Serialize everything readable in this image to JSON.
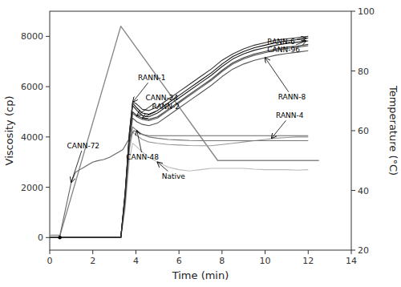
{
  "chart_data": {
    "type": "line",
    "xlabel": "Time (min)",
    "ylabel": "Viscosity (cp)",
    "y2label": "Temperature (°C)",
    "xlim": [
      0,
      14
    ],
    "ylim": [
      -500,
      9000
    ],
    "y2lim": [
      20,
      100
    ],
    "xticks": [
      0,
      2,
      4,
      6,
      8,
      10,
      12,
      14
    ],
    "yticks": [
      0,
      2000,
      4000,
      6000,
      8000
    ],
    "y2ticks": [
      20,
      40,
      60,
      80,
      100
    ],
    "grid": false,
    "series": [
      {
        "color": "#888888",
        "axis": "y2",
        "x": [
          0,
          0.48,
          3.3,
          3.3,
          7.8,
          7.8,
          12.5
        ],
        "values": [
          25,
          25,
          95,
          95,
          50,
          50,
          50
        ]
      },
      {
        "name": "Native",
        "color": "#bbbbbb",
        "x": [
          0,
          0.47,
          0.47,
          3.3,
          3.5,
          3.7,
          3.85,
          4.05,
          4.3,
          4.6,
          5.0,
          5.5,
          6.0,
          6.5,
          7.0,
          7.5,
          8.0,
          8.5,
          9.0,
          9.5,
          10.0,
          10.5,
          11.0,
          11.5,
          12.0
        ],
        "values": [
          0,
          0,
          0,
          0,
          1100,
          3100,
          3750,
          3600,
          3400,
          3200,
          3000,
          2800,
          2700,
          2650,
          2700,
          2750,
          2750,
          2750,
          2750,
          2720,
          2700,
          2700,
          2700,
          2680,
          2700
        ]
      },
      {
        "name": "RANN-4",
        "color": "#999999",
        "x": [
          0,
          0.47,
          0.47,
          3.3,
          3.5,
          3.7,
          3.85,
          4.05,
          4.3,
          4.6,
          5.0,
          5.5,
          6.0,
          6.5,
          7.0,
          7.5,
          8.0,
          8.5,
          9.0,
          9.5,
          10.0,
          10.5,
          11.0,
          11.5,
          12.0
        ],
        "values": [
          0,
          0,
          0,
          0,
          1300,
          3500,
          4200,
          4050,
          3900,
          3800,
          3750,
          3700,
          3680,
          3660,
          3650,
          3650,
          3700,
          3750,
          3800,
          3850,
          3900,
          3950,
          3980,
          4000,
          4000
        ]
      },
      {
        "name": "CANN-48",
        "color": "#777777",
        "x": [
          0,
          0.47,
          0.47,
          3.3,
          3.5,
          3.7,
          3.85,
          4.05,
          4.3,
          4.6,
          5.0,
          5.5,
          6.0,
          6.5,
          7.0,
          7.5,
          8.0,
          8.5,
          9.0,
          9.5,
          10.0,
          10.5,
          11.0,
          11.5,
          12.0
        ],
        "values": [
          0,
          0,
          0,
          0,
          1400,
          3650,
          4400,
          4250,
          4100,
          4000,
          3950,
          3900,
          3880,
          3860,
          3850,
          3850,
          3850,
          3850,
          3850,
          3850,
          3850,
          3850,
          3850,
          3850,
          3850
        ]
      },
      {
        "name": "RANN-8",
        "color": "#555555",
        "x": [
          0,
          0.47,
          0.47,
          3.3,
          3.5,
          3.7,
          3.85,
          4.05,
          4.3,
          4.6,
          5.0,
          5.5,
          6.0,
          6.5,
          7.0,
          7.5,
          8.0,
          8.5,
          9.0,
          9.5,
          10.0,
          10.5,
          11.0,
          11.5,
          12.0
        ],
        "values": [
          0,
          0,
          0,
          0,
          1500,
          3800,
          4750,
          4600,
          4500,
          4450,
          4550,
          4850,
          5150,
          5450,
          5750,
          6050,
          6400,
          6700,
          6900,
          7050,
          7150,
          7250,
          7320,
          7370,
          7430
        ]
      },
      {
        "name": "CANN-72",
        "color": "#666666",
        "x": [
          0,
          0.47,
          0.5,
          1.0,
          1.2,
          1.4,
          1.6,
          1.8,
          2.0,
          2.2,
          2.5,
          2.8,
          3.0,
          3.2,
          3.4,
          3.6,
          3.8,
          3.9,
          4.05,
          4.3,
          4.6,
          5.0,
          5.5,
          6.0,
          6.5,
          7.0,
          7.5,
          8.0,
          8.5,
          9.0,
          9.5,
          10.0,
          10.5,
          11.0,
          11.5,
          12.0
        ],
        "values": [
          0,
          0,
          200,
          2200,
          2600,
          2700,
          2800,
          2900,
          3000,
          3050,
          3100,
          3200,
          3300,
          3400,
          3500,
          3800,
          4100,
          4250,
          4200,
          4100,
          4050,
          4050,
          4050,
          4050,
          4050,
          4050,
          4050,
          4050,
          4050,
          4050,
          4050,
          4050,
          4050,
          4050,
          4050,
          4050
        ]
      },
      {
        "name": "RANN-2",
        "color": "#555555",
        "x": [
          0,
          0.47,
          0.47,
          3.3,
          3.5,
          3.7,
          3.85,
          4.05,
          4.3,
          4.6,
          5.0,
          5.5,
          6.0,
          6.5,
          7.0,
          7.5,
          8.0,
          8.5,
          9.0,
          9.5,
          10.0,
          10.5,
          11.0,
          11.5,
          12.0
        ],
        "values": [
          0,
          0,
          0,
          0,
          1600,
          3950,
          4950,
          4800,
          4700,
          4650,
          4750,
          5050,
          5350,
          5650,
          5950,
          6250,
          6600,
          6900,
          7100,
          7250,
          7350,
          7450,
          7520,
          7570,
          7630
        ]
      },
      {
        "name": "CANN-24",
        "color": "#444444",
        "x": [
          0,
          0.47,
          0.47,
          3.3,
          3.5,
          3.7,
          3.85,
          4.05,
          4.3,
          4.6,
          5.0,
          5.5,
          6.0,
          6.5,
          7.0,
          7.5,
          8.0,
          8.5,
          9.0,
          9.5,
          10.0,
          10.5,
          11.0,
          11.5,
          12.0
        ],
        "values": [
          0,
          0,
          0,
          0,
          1650,
          4000,
          5000,
          4850,
          4750,
          4700,
          4800,
          5100,
          5400,
          5700,
          6000,
          6300,
          6650,
          6950,
          7150,
          7300,
          7400,
          7500,
          7570,
          7620,
          7680
        ]
      },
      {
        "name": "CANN-96",
        "color": "#222222",
        "x": [
          0,
          0.47,
          0.47,
          3.3,
          3.5,
          3.7,
          3.85,
          4.05,
          4.3,
          4.6,
          5.0,
          5.5,
          6.0,
          6.5,
          7.0,
          7.5,
          8.0,
          8.5,
          9.0,
          9.5,
          10.0,
          10.5,
          11.0,
          11.5,
          12.0
        ],
        "values": [
          0,
          0,
          0,
          0,
          1700,
          4100,
          5250,
          5050,
          4850,
          4800,
          4950,
          5250,
          5550,
          5850,
          6150,
          6450,
          6800,
          7100,
          7300,
          7450,
          7550,
          7650,
          7720,
          7770,
          7820
        ]
      },
      {
        "name": "RANN-6",
        "color": "#111111",
        "x": [
          0,
          0.47,
          0.47,
          3.3,
          3.5,
          3.7,
          3.85,
          4.05,
          4.3,
          4.6,
          5.0,
          5.5,
          6.0,
          6.5,
          7.0,
          7.5,
          8.0,
          8.5,
          9.0,
          9.5,
          10.0,
          10.5,
          11.0,
          11.5,
          12.0
        ],
        "values": [
          0,
          0,
          0,
          0,
          1750,
          4150,
          5350,
          5150,
          4950,
          4900,
          5050,
          5350,
          5650,
          5950,
          6250,
          6550,
          6900,
          7200,
          7400,
          7550,
          7650,
          7750,
          7820,
          7870,
          7930
        ]
      },
      {
        "name": "RANN-1",
        "color": "#333333",
        "x": [
          0,
          0.47,
          0.47,
          3.3,
          3.5,
          3.7,
          3.85,
          4.05,
          4.3,
          4.6,
          5.0,
          5.5,
          6.0,
          6.5,
          7.0,
          7.5,
          8.0,
          8.5,
          9.0,
          9.5,
          10.0,
          10.5,
          11.0,
          11.5,
          12.0
        ],
        "values": [
          0,
          0,
          0,
          0,
          1800,
          4200,
          5400,
          5300,
          5100,
          5050,
          5200,
          5500,
          5800,
          6100,
          6400,
          6700,
          7050,
          7300,
          7500,
          7650,
          7750,
          7850,
          7900,
          7950,
          8000
        ]
      },
      {
        "type": "scatter",
        "marker": "circle",
        "color": "#000000",
        "x": [
          0.47
        ],
        "values": [
          0
        ]
      }
    ],
    "annotations": [
      {
        "text": "RANN-1",
        "x": 3.87,
        "y": 5400,
        "text_x": 4.1,
        "text_y": 6250
      },
      {
        "text": "CANN-24",
        "x": 4.05,
        "y": 4850,
        "text_x": 4.45,
        "text_y": 5450
      },
      {
        "text": "RANN-2",
        "x": 4.3,
        "y": 4750,
        "text_x": 4.75,
        "text_y": 5100
      },
      {
        "text": "CANN-72",
        "x": 1.0,
        "y": 2200,
        "text_x": 0.8,
        "text_y": 3550
      },
      {
        "text": "CANN-48",
        "x": 4.05,
        "y": 4250,
        "text_x": 3.55,
        "text_y": 3100
      },
      {
        "text": "Native",
        "x": 5.0,
        "y": 3000,
        "text_x": 5.2,
        "text_y": 2350
      },
      {
        "text": "RANN-6",
        "x": 11.9,
        "y": 7930,
        "text_x": 10.1,
        "text_y": 7700
      },
      {
        "text": "CANN-96",
        "x": 11.9,
        "y": 7820,
        "text_x": 10.1,
        "text_y": 7380
      },
      {
        "text": "RANN-8",
        "x": 10.0,
        "y": 7150,
        "text_x": 10.6,
        "text_y": 5500
      },
      {
        "text": "RANN-4",
        "x": 10.3,
        "y": 3950,
        "text_x": 10.5,
        "text_y": 4750
      }
    ]
  }
}
